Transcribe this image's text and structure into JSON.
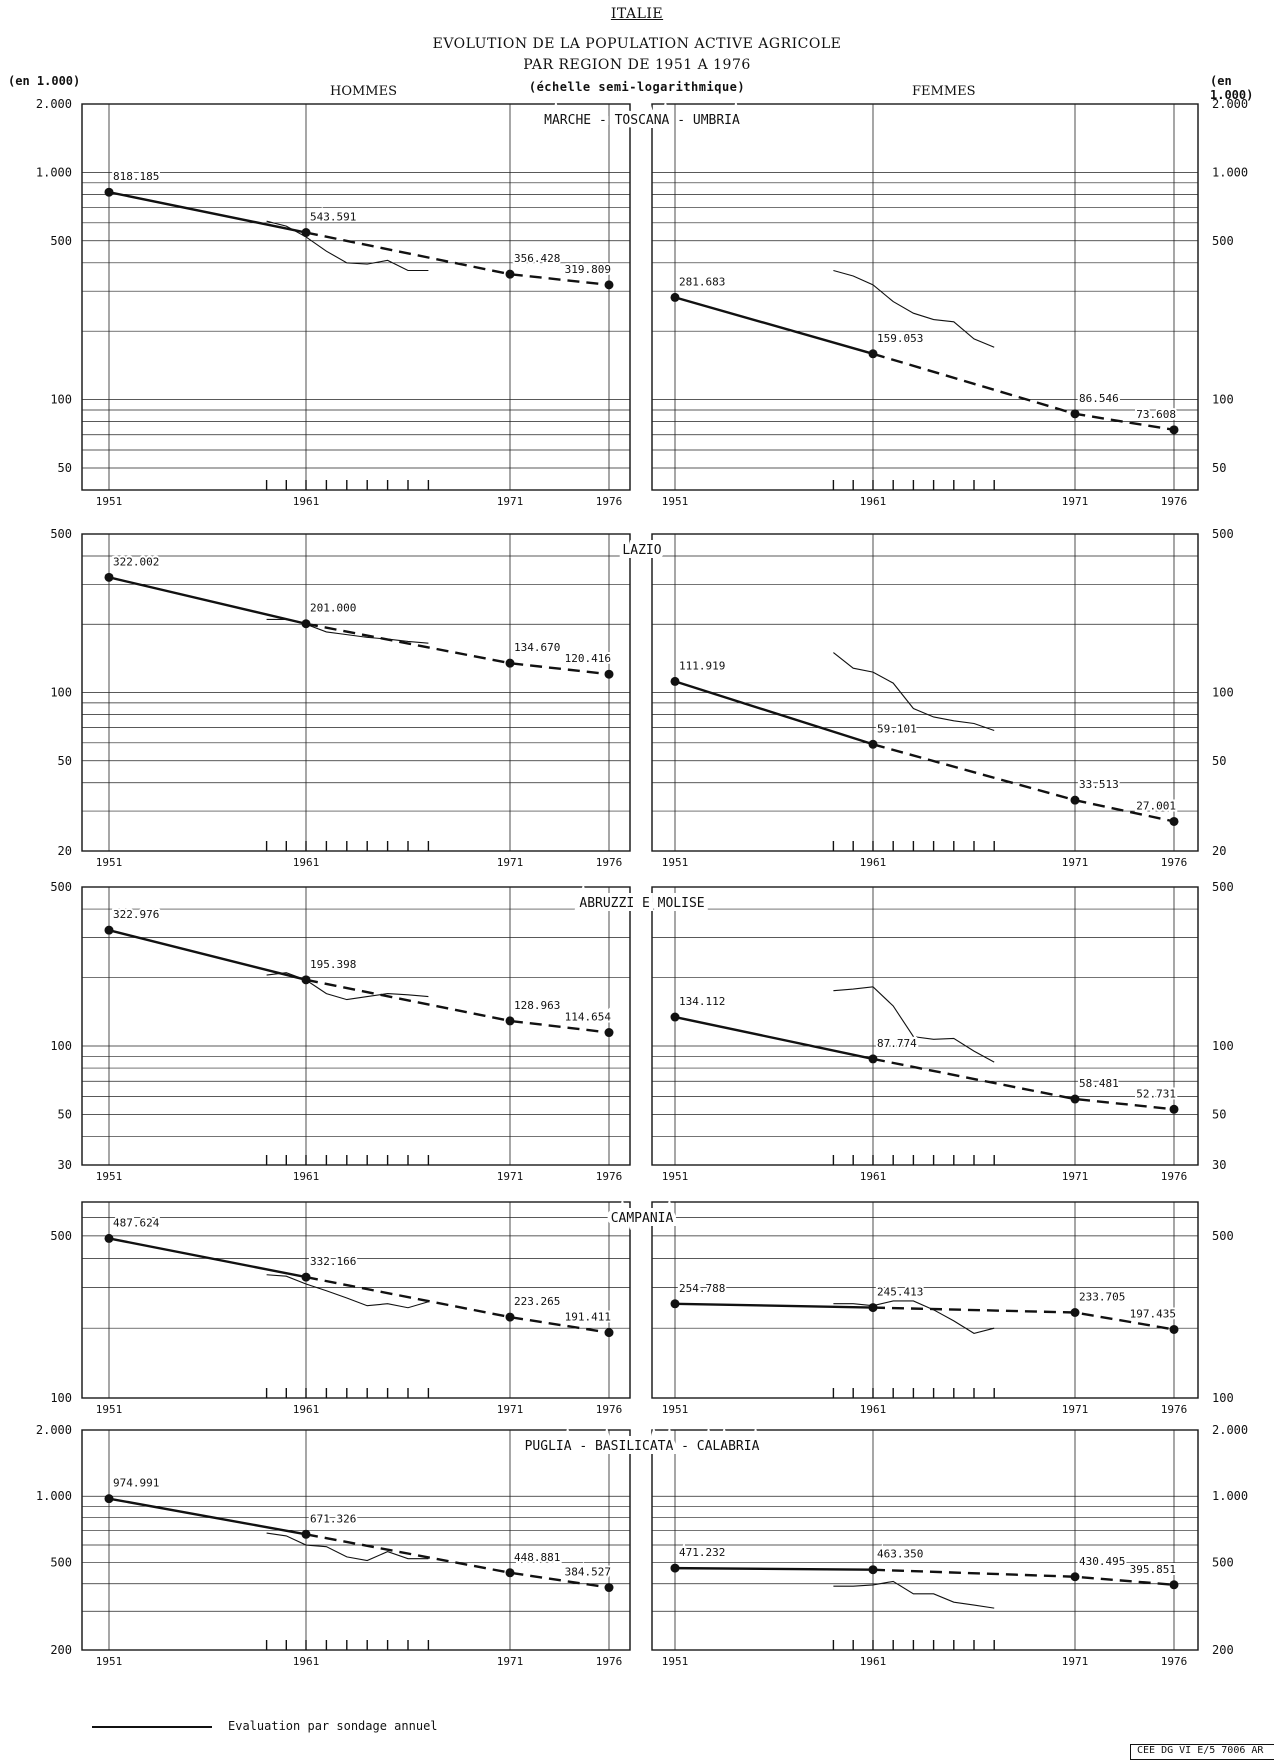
{
  "header": {
    "title": "ITALIE",
    "subtitle_1": "EVOLUTION DE LA POPULATION ACTIVE AGRICOLE",
    "subtitle_2": "PAR REGION DE 1951 A 1976",
    "scale_note": "(échelle semi-logarithmique)",
    "unit_left": "(en 1.000)",
    "unit_right": "(en 1.000)",
    "col_men": "HOMMES",
    "col_women": "FEMMES"
  },
  "legend": {
    "line_label": "Evaluation par sondage annuel"
  },
  "reference": "CEE DG VI E/5 7006 AR",
  "chart_data": [
    {
      "type": "line",
      "region": "MARCHE - TOSCANA - UMBRIA",
      "y_scale": "log",
      "ylim": [
        40,
        2000
      ],
      "yticks": [
        50,
        100,
        500,
        1000,
        2000
      ],
      "ytick_labels": [
        "50",
        "100",
        "500",
        "1.000",
        "2.000"
      ],
      "xticks": [
        1951,
        1961,
        1971,
        1976
      ],
      "men": {
        "x": [
          1951,
          1961,
          1971,
          1976
        ],
        "values": [
          818.185,
          543.591,
          356.428,
          319.809
        ],
        "labels": [
          "818.185",
          "543.591",
          "356.428",
          "319.809"
        ],
        "survey_x": [
          1959,
          1960,
          1961,
          1962,
          1963,
          1964,
          1965,
          1966,
          1967
        ],
        "survey_y": [
          610,
          580,
          520,
          450,
          400,
          395,
          410,
          370,
          370
        ]
      },
      "women": {
        "x": [
          1951,
          1961,
          1971,
          1976
        ],
        "values": [
          281.683,
          159.053,
          86.546,
          73.608
        ],
        "labels": [
          "281.683",
          "159.053",
          "86.546",
          "73.608"
        ],
        "survey_x": [
          1959,
          1960,
          1961,
          1962,
          1963,
          1964,
          1965,
          1966,
          1967
        ],
        "survey_y": [
          370,
          350,
          320,
          270,
          240,
          225,
          220,
          185,
          170
        ]
      }
    },
    {
      "type": "line",
      "region": "LAZIO",
      "y_scale": "log",
      "ylim": [
        20,
        500
      ],
      "yticks": [
        20,
        50,
        100,
        500
      ],
      "ytick_labels": [
        "20",
        "50",
        "100",
        "500"
      ],
      "xticks": [
        1951,
        1961,
        1971,
        1976
      ],
      "men": {
        "x": [
          1951,
          1961,
          1971,
          1976
        ],
        "values": [
          322.002,
          201.0,
          134.67,
          120.416
        ],
        "labels": [
          "322.002",
          "201.000",
          "134.670",
          "120.416"
        ],
        "survey_x": [
          1959,
          1960,
          1961,
          1962,
          1963,
          1964,
          1965,
          1966,
          1967
        ],
        "survey_y": [
          210,
          210,
          200,
          185,
          180,
          175,
          172,
          168,
          165
        ]
      },
      "women": {
        "x": [
          1951,
          1961,
          1971,
          1976
        ],
        "values": [
          111.919,
          59.101,
          33.513,
          27.001
        ],
        "labels": [
          "111.919",
          "59.101",
          "33.513",
          "27.001"
        ],
        "survey_x": [
          1959,
          1960,
          1961,
          1962,
          1963,
          1964,
          1965,
          1966,
          1967
        ],
        "survey_y": [
          150,
          128,
          123,
          110,
          85,
          78,
          75,
          73,
          68
        ]
      }
    },
    {
      "type": "line",
      "region": "ABRUZZI E MOLISE",
      "y_scale": "log",
      "ylim": [
        30,
        500
      ],
      "yticks": [
        30,
        50,
        100,
        500
      ],
      "ytick_labels": [
        "30",
        "50",
        "100",
        "500"
      ],
      "xticks": [
        1951,
        1961,
        1971,
        1976
      ],
      "men": {
        "x": [
          1951,
          1961,
          1971,
          1976
        ],
        "values": [
          322.976,
          195.398,
          128.963,
          114.654
        ],
        "labels": [
          "322.976",
          "195.398",
          "128.963",
          "114.654"
        ],
        "survey_x": [
          1959,
          1960,
          1961,
          1962,
          1963,
          1964,
          1965,
          1966,
          1967
        ],
        "survey_y": [
          205,
          210,
          195,
          170,
          160,
          165,
          170,
          168,
          165
        ]
      },
      "women": {
        "x": [
          1951,
          1961,
          1971,
          1976
        ],
        "values": [
          134.112,
          87.774,
          58.481,
          52.731
        ],
        "labels": [
          "134.112",
          "87.774",
          "58.481",
          "52.731"
        ],
        "survey_x": [
          1959,
          1960,
          1961,
          1962,
          1963,
          1964,
          1965,
          1966,
          1967
        ],
        "survey_y": [
          175,
          178,
          182,
          150,
          110,
          107,
          108,
          95,
          85
        ]
      }
    },
    {
      "type": "line",
      "region": "CAMPANIA",
      "y_scale": "log",
      "ylim": [
        100,
        700
      ],
      "yticks": [
        100,
        500
      ],
      "ytick_labels": [
        "100",
        "500"
      ],
      "xticks": [
        1951,
        1961,
        1971,
        1976
      ],
      "men": {
        "x": [
          1951,
          1961,
          1971,
          1976
        ],
        "values": [
          487.624,
          332.166,
          223.265,
          191.411
        ],
        "labels": [
          "487.624",
          "332.166",
          "223.265",
          "191.411"
        ],
        "survey_x": [
          1959,
          1960,
          1961,
          1962,
          1963,
          1964,
          1965,
          1966,
          1967
        ],
        "survey_y": [
          340,
          335,
          310,
          290,
          270,
          250,
          255,
          245,
          260
        ]
      },
      "women": {
        "x": [
          1951,
          1961,
          1971,
          1976
        ],
        "values": [
          254.788,
          245.413,
          233.705,
          197.435
        ],
        "labels": [
          "254.788",
          "245.413",
          "233.705",
          "197.435"
        ],
        "survey_x": [
          1959,
          1960,
          1961,
          1962,
          1963,
          1964,
          1965,
          1966,
          1967
        ],
        "survey_y": [
          255,
          255,
          250,
          262,
          262,
          240,
          215,
          190,
          200
        ]
      }
    },
    {
      "type": "line",
      "region": "PUGLIA - BASILICATA - CALABRIA",
      "y_scale": "log",
      "ylim": [
        200,
        2000
      ],
      "yticks": [
        200,
        500,
        1000,
        2000
      ],
      "ytick_labels": [
        "200",
        "500",
        "1.000",
        "2.000"
      ],
      "xticks": [
        1951,
        1961,
        1971,
        1976
      ],
      "men": {
        "x": [
          1951,
          1961,
          1971,
          1976
        ],
        "values": [
          974.991,
          671.326,
          448.881,
          384.527
        ],
        "labels": [
          "974.991",
          "671.326",
          "448.881",
          "384.527"
        ],
        "survey_x": [
          1959,
          1960,
          1961,
          1962,
          1963,
          1964,
          1965,
          1966,
          1967
        ],
        "survey_y": [
          680,
          660,
          600,
          590,
          530,
          510,
          560,
          520,
          520
        ]
      },
      "women": {
        "x": [
          1951,
          1961,
          1971,
          1976
        ],
        "values": [
          471.232,
          463.35,
          430.495,
          395.851
        ],
        "labels": [
          "471.232",
          "463.350",
          "430.495",
          "395.851"
        ],
        "survey_x": [
          1959,
          1960,
          1961,
          1962,
          1963,
          1964,
          1965,
          1966,
          1967
        ],
        "survey_y": [
          390,
          390,
          395,
          410,
          360,
          360,
          330,
          320,
          310
        ]
      }
    }
  ]
}
